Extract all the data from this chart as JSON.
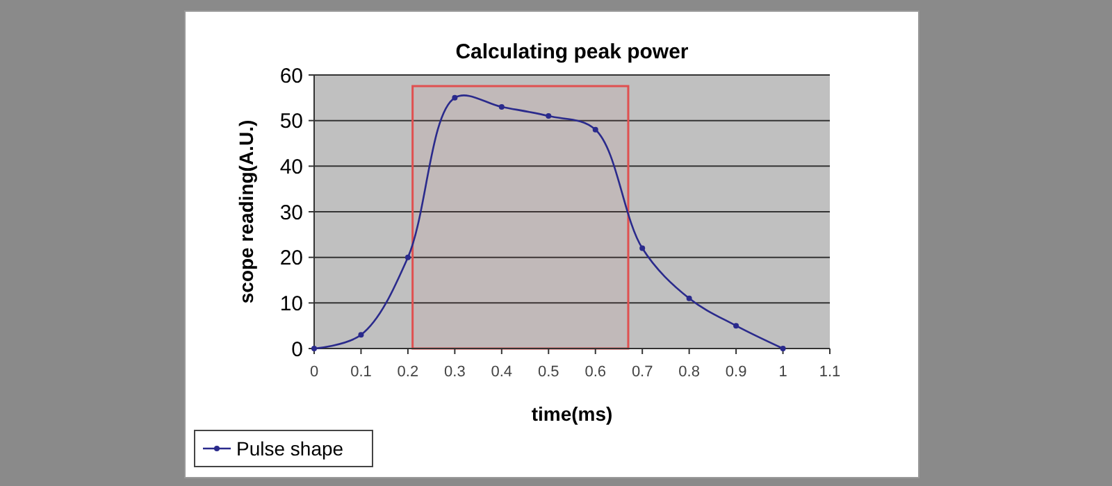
{
  "chart_data": {
    "type": "line",
    "title": "Calculating peak power",
    "xlabel": "time(ms)",
    "ylabel": "scope reading(A.U.)",
    "x": [
      0,
      0.1,
      0.2,
      0.3,
      0.4,
      0.5,
      0.6,
      0.7,
      0.8,
      0.9,
      1
    ],
    "series": [
      {
        "name": "Pulse shape",
        "color": "#2a2a8c",
        "values": [
          0,
          3,
          20,
          55,
          53,
          51,
          48,
          22,
          11,
          5,
          0
        ]
      }
    ],
    "xlim": [
      0,
      1.1
    ],
    "xticks": [
      0,
      0.1,
      0.2,
      0.3,
      0.4,
      0.5,
      0.6,
      0.7,
      0.8,
      0.9,
      1,
      1.1
    ],
    "ylim": [
      0,
      60
    ],
    "yticks": [
      0,
      10,
      20,
      30,
      40,
      50,
      60
    ],
    "bands": [
      {
        "axis": "x",
        "from": 0.21,
        "to": 0.67,
        "color": "#e05050"
      }
    ],
    "grid": "y",
    "legend": "bottom left",
    "marker": "circle",
    "line_style": "solid"
  }
}
